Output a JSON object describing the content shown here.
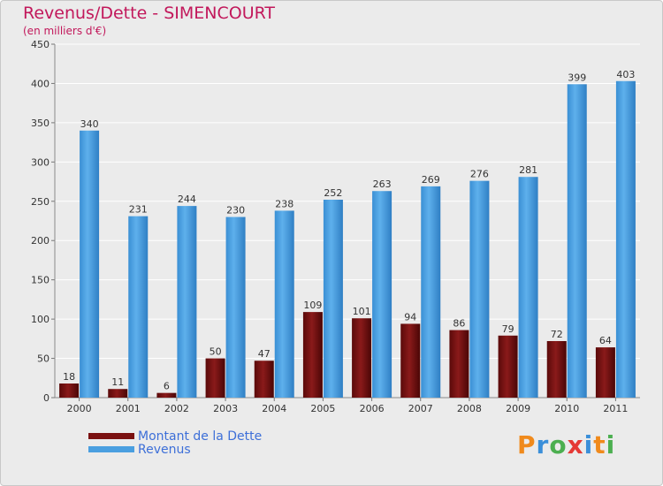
{
  "header": {
    "title": "Revenus/Dette - SIMENCOURT",
    "subtitle": "(en milliers d'€)"
  },
  "legend": {
    "items": [
      {
        "label": "Montant de la Dette",
        "color": "#7a1010"
      },
      {
        "label": "Revenus",
        "color": "#4a9fe0"
      }
    ]
  },
  "logo": {
    "letters": [
      "P",
      "r",
      "o",
      "x",
      "i",
      "t",
      "i"
    ],
    "colors": [
      "#f08a1c",
      "#3b8fd9",
      "#4caf50",
      "#e53935",
      "#3b8fd9",
      "#f08a1c",
      "#4caf50"
    ]
  },
  "chart_data": {
    "type": "bar",
    "categories": [
      "2000",
      "2001",
      "2002",
      "2003",
      "2004",
      "2005",
      "2006",
      "2007",
      "2008",
      "2009",
      "2010",
      "2011"
    ],
    "series": [
      {
        "name": "Montant de la Dette",
        "color": "#7a1010",
        "values": [
          18,
          11,
          6,
          50,
          47,
          109,
          101,
          94,
          86,
          79,
          72,
          64
        ]
      },
      {
        "name": "Revenus",
        "color": "#4a9fe0",
        "values": [
          340,
          231,
          244,
          230,
          238,
          252,
          263,
          269,
          276,
          281,
          399,
          403
        ]
      }
    ],
    "ylim": [
      0,
      450
    ],
    "yticks": [
      0,
      50,
      100,
      150,
      200,
      250,
      300,
      350,
      400,
      450
    ],
    "grid": true,
    "legend_position": "bottom-left"
  }
}
